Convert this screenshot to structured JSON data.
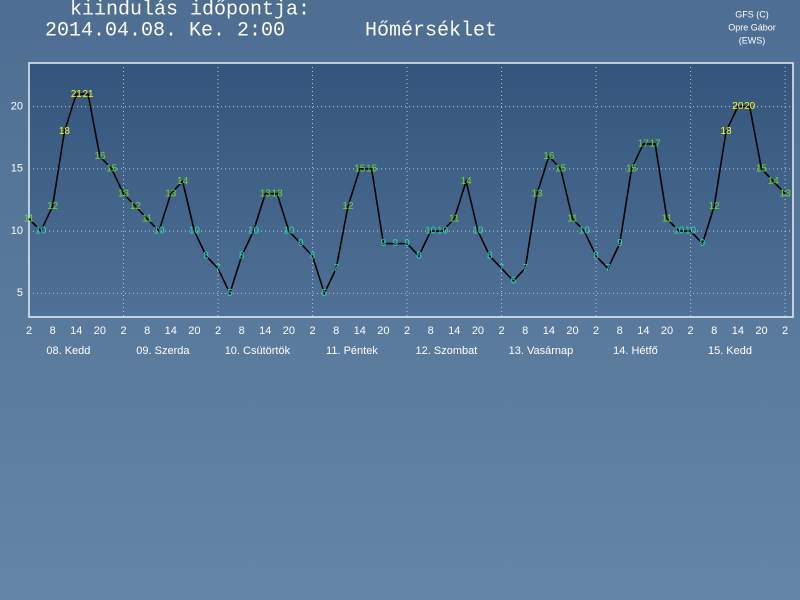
{
  "header": {
    "line1": "kiindulás időpontja:",
    "line2": "2014.04.08. Ke. 2:00",
    "title": "Hőmérséklet",
    "credit": [
      "GFS (C)",
      "Opre Gábor",
      "(EWS)"
    ]
  },
  "chart_data": {
    "type": "line",
    "color": "#000000",
    "x": [
      0,
      3,
      6,
      9,
      12,
      15,
      18,
      21,
      24,
      27,
      30,
      33,
      36,
      39,
      42,
      45,
      48,
      51,
      54,
      57,
      60,
      63,
      66,
      69,
      72,
      75,
      78,
      81,
      84,
      87,
      90,
      93,
      96,
      99,
      102,
      105,
      108,
      111,
      114,
      117,
      120,
      123,
      126,
      129,
      132,
      135,
      138,
      141,
      144,
      147,
      150,
      153,
      156,
      159,
      162,
      165,
      168,
      171,
      174,
      177,
      180,
      183,
      186,
      189,
      192
    ],
    "values": [
      11,
      10,
      12,
      18,
      21,
      21,
      16,
      15,
      13,
      12,
      11,
      10,
      13,
      14,
      10,
      8,
      7,
      5,
      8,
      10,
      13,
      13,
      10,
      9,
      8,
      5,
      7,
      12,
      15,
      15,
      9,
      9,
      9,
      8,
      10,
      10,
      11,
      14,
      10,
      8,
      7,
      6,
      7,
      13,
      16,
      15,
      11,
      10,
      8,
      7,
      9,
      15,
      17,
      17,
      11,
      10,
      10,
      9,
      12,
      18,
      20,
      20,
      15,
      14,
      13
    ],
    "label_color_stops": [
      {
        "from": 18,
        "color": "#ffff00"
      },
      {
        "from": 11,
        "color": "#66dd22"
      }
    ],
    "label_color": "#22ddaa",
    "xlim": [
      0,
      194
    ],
    "ylim": [
      3.1,
      23.5
    ],
    "yticks": [
      5,
      10,
      15,
      20
    ],
    "xticks": [
      {
        "value": 0,
        "label": "2"
      },
      {
        "value": 6,
        "label": "8"
      },
      {
        "value": 12,
        "label": "14"
      },
      {
        "value": 18,
        "label": "20"
      },
      {
        "value": 24,
        "label": "2"
      },
      {
        "value": 30,
        "label": "8"
      },
      {
        "value": 36,
        "label": "14"
      },
      {
        "value": 42,
        "label": "20"
      },
      {
        "value": 48,
        "label": "2"
      },
      {
        "value": 54,
        "label": "8"
      },
      {
        "value": 60,
        "label": "14"
      },
      {
        "value": 66,
        "label": "20"
      },
      {
        "value": 72,
        "label": "2"
      },
      {
        "value": 78,
        "label": "8"
      },
      {
        "value": 84,
        "label": "14"
      },
      {
        "value": 90,
        "label": "20"
      },
      {
        "value": 96,
        "label": "2"
      },
      {
        "value": 102,
        "label": "8"
      },
      {
        "value": 108,
        "label": "14"
      },
      {
        "value": 114,
        "label": "20"
      },
      {
        "value": 120,
        "label": "2"
      },
      {
        "value": 126,
        "label": "8"
      },
      {
        "value": 132,
        "label": "14"
      },
      {
        "value": 138,
        "label": "20"
      },
      {
        "value": 144,
        "label": "2"
      },
      {
        "value": 150,
        "label": "8"
      },
      {
        "value": 156,
        "label": "14"
      },
      {
        "value": 162,
        "label": "20"
      },
      {
        "value": 168,
        "label": "2"
      },
      {
        "value": 174,
        "label": "8"
      },
      {
        "value": 180,
        "label": "14"
      },
      {
        "value": 186,
        "label": "20"
      },
      {
        "value": 192,
        "label": "2"
      }
    ],
    "day_ticks": [
      {
        "value": 10,
        "label": "08. Kedd"
      },
      {
        "value": 34,
        "label": "09. Szerda"
      },
      {
        "value": 58,
        "label": "10. Csütörtök"
      },
      {
        "value": 82,
        "label": "11. Péntek"
      },
      {
        "value": 106,
        "label": "12. Szombat"
      },
      {
        "value": 130,
        "label": "13. Vasárnap"
      },
      {
        "value": 154,
        "label": "14. Hétfő"
      },
      {
        "value": 178,
        "label": "15. Kedd"
      }
    ],
    "grid": true
  }
}
